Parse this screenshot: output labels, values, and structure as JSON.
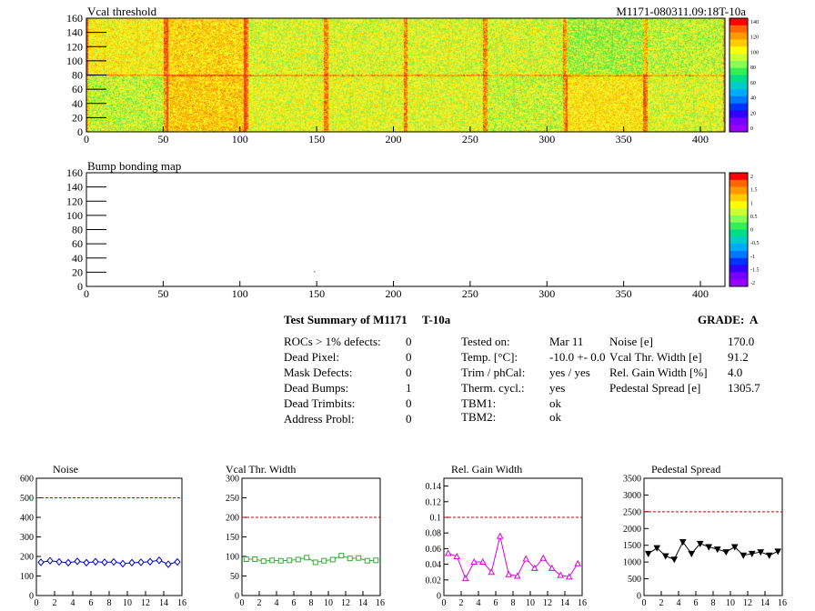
{
  "vcal_map": {
    "title": "Vcal threshold",
    "module_label": "M1171-080311.09:18T-10a",
    "xticks": [
      "0",
      "50",
      "100",
      "150",
      "200",
      "250",
      "300",
      "350",
      "400"
    ],
    "yticks": [
      "0",
      "20",
      "40",
      "60",
      "80",
      "100",
      "120",
      "140",
      "160"
    ],
    "scale_ticks": [
      "140",
      "120",
      "100",
      "80",
      "60",
      "40",
      "20",
      "0"
    ]
  },
  "bump_map": {
    "title": "Bump bonding map",
    "xticks": [
      "0",
      "50",
      "100",
      "150",
      "200",
      "250",
      "300",
      "350",
      "400"
    ],
    "yticks": [
      "0",
      "20",
      "40",
      "60",
      "80",
      "100",
      "120",
      "140",
      "160"
    ],
    "scale_ticks": [
      "2",
      "1.5",
      "1",
      "0.5",
      "0",
      "-0.5",
      "-1",
      "-1.5",
      "-2"
    ]
  },
  "summary": {
    "title": "Test Summary of M1171",
    "test": "T-10a",
    "grade_label": "GRADE:",
    "grade": "A",
    "defects": [
      {
        "label": "ROCs > 1% defects:",
        "value": "0"
      },
      {
        "label": "Dead Pixel:",
        "value": "0"
      },
      {
        "label": "Mask Defects:",
        "value": "0"
      },
      {
        "label": "Dead Bumps:",
        "value": "1"
      },
      {
        "label": "Dead Trimbits:",
        "value": "0"
      },
      {
        "label": "Address Probl:",
        "value": "0"
      }
    ],
    "conditions": [
      {
        "label": "Tested on:",
        "value": "Mar 11"
      },
      {
        "label": "Temp. [°C]:",
        "value": "-10.0 +- 0.0"
      },
      {
        "label": "Trim / phCal:",
        "value": "yes / yes"
      },
      {
        "label": "Therm. cycl.:",
        "value": "yes"
      },
      {
        "label": "TBM1:",
        "value": "ok"
      },
      {
        "label": "TBM2:",
        "value": "ok"
      }
    ],
    "measurements": [
      {
        "label": "Noise [e]",
        "value": "170.0"
      },
      {
        "label": "Vcal Thr. Width [e]",
        "value": "91.2"
      },
      {
        "label": "Rel. Gain Width [%]",
        "value": "4.0"
      },
      {
        "label": "Pedestal Spread [e]",
        "value": "1305.7"
      }
    ]
  },
  "chart_data": [
    {
      "type": "line",
      "title": "Noise",
      "color": "#0000cc",
      "marker": "diamond-open",
      "xlim": [
        0,
        16
      ],
      "ylim": [
        0,
        600
      ],
      "xticks": [
        0,
        2,
        4,
        6,
        8,
        10,
        12,
        14,
        16
      ],
      "yticks": [
        0,
        100,
        200,
        300,
        400,
        500,
        600
      ],
      "threshold": 500,
      "x": [
        0.5,
        1.5,
        2.5,
        3.5,
        4.5,
        5.5,
        6.5,
        7.5,
        8.5,
        9.5,
        10.5,
        11.5,
        12.5,
        13.5,
        14.5,
        15.5
      ],
      "values": [
        170,
        178,
        172,
        168,
        175,
        168,
        173,
        170,
        172,
        163,
        168,
        170,
        173,
        180,
        160,
        172
      ]
    },
    {
      "type": "line",
      "title": "Vcal Thr. Width",
      "color": "#33aa33",
      "marker": "square-open",
      "xlim": [
        0,
        16
      ],
      "ylim": [
        0,
        300
      ],
      "xticks": [
        0,
        2,
        4,
        6,
        8,
        10,
        12,
        14,
        16
      ],
      "yticks": [
        0,
        50,
        100,
        150,
        200,
        250,
        300
      ],
      "threshold": 200,
      "x": [
        0.5,
        1.5,
        2.5,
        3.5,
        4.5,
        5.5,
        6.5,
        7.5,
        8.5,
        9.5,
        10.5,
        11.5,
        12.5,
        13.5,
        14.5,
        15.5
      ],
      "values": [
        93,
        93,
        88,
        90,
        89,
        90,
        92,
        97,
        85,
        89,
        92,
        102,
        95,
        96,
        89,
        90
      ]
    },
    {
      "type": "line",
      "title": "Rel. Gain Width",
      "color": "#dd00dd",
      "marker": "triangle-open",
      "xlim": [
        0,
        16
      ],
      "ylim": [
        0,
        0.15
      ],
      "xticks": [
        0,
        2,
        4,
        6,
        8,
        10,
        12,
        14,
        16
      ],
      "yticks": [
        0,
        0.02,
        0.04,
        0.06,
        0.08,
        0.1,
        0.12,
        0.14
      ],
      "threshold": 0.1,
      "x": [
        0.5,
        1.5,
        2.5,
        3.5,
        4.5,
        5.5,
        6.5,
        7.5,
        8.5,
        9.5,
        10.5,
        11.5,
        12.5,
        13.5,
        14.5,
        15.5
      ],
      "values": [
        0.054,
        0.05,
        0.022,
        0.043,
        0.043,
        0.03,
        0.076,
        0.027,
        0.025,
        0.047,
        0.035,
        0.048,
        0.035,
        0.026,
        0.024,
        0.041
      ]
    },
    {
      "type": "line",
      "title": "Pedestal Spread",
      "color": "#000000",
      "marker": "triangle-down-filled",
      "xlim": [
        0,
        16
      ],
      "ylim": [
        0,
        3500
      ],
      "xticks": [
        0,
        2,
        4,
        6,
        8,
        10,
        12,
        14,
        16
      ],
      "yticks": [
        0,
        500,
        1000,
        1500,
        2000,
        2500,
        3000,
        3500
      ],
      "threshold": 2500,
      "x": [
        0.5,
        1.5,
        2.5,
        3.5,
        4.5,
        5.5,
        6.5,
        7.5,
        8.5,
        9.5,
        10.5,
        11.5,
        12.5,
        13.5,
        14.5,
        15.5
      ],
      "values": [
        1250,
        1420,
        1180,
        1080,
        1600,
        1250,
        1550,
        1450,
        1380,
        1300,
        1450,
        1200,
        1250,
        1300,
        1200,
        1320
      ]
    }
  ]
}
